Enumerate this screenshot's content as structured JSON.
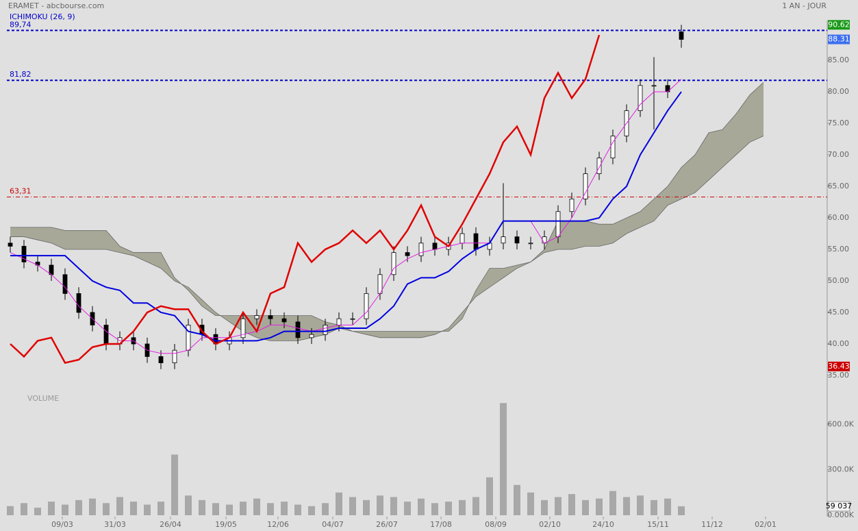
{
  "chart_data": [
    {
      "type": "candlestick",
      "title": "ERAMET - abcbourse.com",
      "indicator": "ICHIMOKU (26, 9)",
      "period": "1 AN - JOUR",
      "xlim": [
        -0.25,
        59.65
      ],
      "ylim": [
        34.5,
        91.3
      ],
      "xticks": [
        {
          "value": 3.8,
          "label": "09/03"
        },
        {
          "value": 7.65,
          "label": "31/03"
        },
        {
          "value": 11.7,
          "label": "26/04"
        },
        {
          "value": 15.75,
          "label": "19/05"
        },
        {
          "value": 19.55,
          "label": "12/06"
        },
        {
          "value": 23.55,
          "label": "04/07"
        },
        {
          "value": 27.5,
          "label": "26/07"
        },
        {
          "value": 31.45,
          "label": "17/08"
        },
        {
          "value": 35.45,
          "label": "08/09"
        },
        {
          "value": 39.4,
          "label": "02/10"
        },
        {
          "value": 43.3,
          "label": "24/10"
        },
        {
          "value": 47.3,
          "label": "15/11"
        },
        {
          "value": 51.25,
          "label": "11/12"
        },
        {
          "value": 55.15,
          "label": "02/01"
        }
      ],
      "yticks": [
        {
          "value": 35,
          "label": "35.00"
        },
        {
          "value": 40,
          "label": "40.00"
        },
        {
          "value": 45,
          "label": "45.00"
        },
        {
          "value": 50,
          "label": "50.00"
        },
        {
          "value": 55,
          "label": "55.00"
        },
        {
          "value": 60,
          "label": "60.00"
        },
        {
          "value": 65,
          "label": "65.00"
        },
        {
          "value": 70,
          "label": "70.00"
        },
        {
          "value": 75,
          "label": "75.00"
        },
        {
          "value": 80,
          "label": "80.00"
        },
        {
          "value": 85,
          "label": "85.00"
        }
      ],
      "open": [
        56,
        55.5,
        53,
        52.5,
        51,
        48,
        45,
        43,
        40,
        41,
        40,
        38,
        37,
        39,
        43,
        41.5,
        40,
        41,
        44,
        44.5,
        44,
        43.5,
        41,
        41.5,
        43,
        44,
        44,
        48,
        51,
        54.5,
        54,
        56,
        55,
        56,
        57.5,
        55,
        56,
        57,
        56,
        56,
        57,
        61,
        63,
        67,
        69.5,
        73,
        77,
        81,
        81,
        89.5
      ],
      "high": [
        57,
        56.5,
        54,
        53.5,
        52,
        49,
        46,
        44,
        42,
        42,
        41,
        39,
        40,
        44,
        44,
        42.5,
        42,
        45,
        45.5,
        45.5,
        45,
        44.5,
        42.5,
        44,
        45,
        45,
        49,
        52,
        55.5,
        55.5,
        57,
        57,
        57,
        58.5,
        58.5,
        57,
        65.5,
        58,
        57,
        58,
        62,
        64,
        68,
        70.5,
        74,
        78,
        82,
        85.5,
        82,
        90.62
      ],
      "low": [
        54.5,
        52,
        51.5,
        50,
        47,
        44,
        42,
        39,
        39,
        39,
        37,
        36,
        36,
        38,
        40.5,
        39,
        39,
        40,
        43,
        43,
        42.5,
        40,
        40,
        40.5,
        42,
        43,
        43,
        47,
        50,
        53,
        53,
        54,
        54,
        55,
        54,
        54,
        55,
        55,
        55,
        55,
        56,
        60,
        62,
        66,
        68.5,
        72,
        76,
        74,
        79,
        87
      ],
      "close": [
        55.5,
        53,
        52.5,
        51,
        48,
        45,
        43,
        40,
        41,
        40,
        38,
        37,
        39,
        43,
        41.5,
        40,
        41,
        44,
        44.5,
        44,
        43.5,
        41,
        41.5,
        43,
        44,
        44,
        48,
        51,
        54.5,
        54,
        56,
        55,
        56,
        57.5,
        55,
        56,
        57,
        56,
        56,
        57,
        61,
        63,
        67,
        69.5,
        73,
        77,
        81,
        81,
        80,
        88.31
      ],
      "lines": [
        {
          "color": "#e020e0",
          "width": 1,
          "values": [
            54.5,
            53.5,
            52.5,
            51,
            49,
            46,
            44,
            42,
            40.5,
            40.5,
            39,
            38.5,
            38.5,
            39,
            41,
            41,
            41,
            41.5,
            42,
            43,
            43,
            42.5,
            42,
            42.5,
            43,
            43,
            45,
            48,
            52,
            53.5,
            54.5,
            55,
            55.5,
            56,
            56,
            56,
            59.5,
            59.5,
            59.5,
            56,
            57,
            60,
            64,
            68,
            72,
            75,
            78,
            80,
            80,
            82
          ]
        },
        {
          "color": "#0000e0",
          "width": 2,
          "values": [
            54,
            54,
            54,
            54,
            54,
            52,
            50,
            49,
            48.5,
            46.5,
            46.5,
            45,
            44.5,
            42,
            41.5,
            40.5,
            40.5,
            40.5,
            40.5,
            41,
            42,
            42,
            42,
            42,
            42.5,
            42.5,
            42.5,
            44,
            46,
            49.5,
            50.5,
            50.5,
            51.5,
            53.5,
            55,
            56,
            59.5,
            59.5,
            59.5,
            59.5,
            59.5,
            59.5,
            59.5,
            60,
            63,
            65,
            70,
            73.5,
            77,
            80
          ]
        },
        {
          "color": "#e00000",
          "width": 2.5,
          "values": [
            40,
            38,
            40.5,
            41,
            37,
            37.5,
            39.5,
            40,
            40,
            42,
            45,
            46,
            45.5,
            45.5,
            42,
            40,
            41,
            45,
            42,
            48,
            49,
            56,
            53,
            55,
            56,
            58,
            56,
            58,
            55,
            58,
            62,
            57,
            55.5,
            59,
            63,
            67,
            72,
            74.5,
            70,
            79,
            83,
            79,
            82,
            89
          ]
        }
      ],
      "cloud": {
        "color": "#a8a898",
        "spans": [
          {
            "values": [
              58.5,
              58.5,
              58.5,
              58.5,
              58,
              58,
              58,
              58,
              55.5,
              54.5,
              54.5,
              54.5,
              50.5,
              48.5,
              46,
              44.5,
              44.5,
              44.5,
              44.5,
              44.5,
              44.5,
              44.5,
              44.5,
              43.5,
              43,
              42,
              42,
              42,
              42,
              42,
              42,
              42,
              42,
              44,
              48.5,
              52,
              52,
              52.5,
              53,
              55,
              59.5,
              59.5,
              59.5,
              59,
              59,
              60,
              61,
              63,
              65,
              68,
              70,
              73.5,
              74,
              76.5,
              79.5,
              81.5
            ]
          },
          {
            "values": [
              57,
              57,
              56.5,
              56,
              55,
              55,
              55,
              55,
              54.5,
              54,
              53,
              52,
              50,
              49,
              47,
              45,
              43.5,
              42,
              41,
              40.5,
              40.5,
              40.5,
              41,
              41.5,
              42.5,
              42,
              41.5,
              41,
              41,
              41,
              41,
              41.5,
              42.5,
              45,
              47.5,
              49,
              50.5,
              52,
              53,
              54.5,
              55,
              55,
              55.5,
              55.5,
              56,
              57.5,
              58.5,
              59.5,
              62,
              63,
              64,
              66,
              68,
              70,
              72,
              73
            ]
          }
        ]
      },
      "levels": [
        {
          "value": 89.74,
          "label": "89,74",
          "color": "#0000cc",
          "dash": "4 3"
        },
        {
          "value": 81.82,
          "label": "81,82",
          "color": "#0000cc",
          "dash": "4 3"
        },
        {
          "value": 63.31,
          "label": "63,31",
          "color": "#cc0000",
          "dash": "6 3 1 3"
        }
      ],
      "tags": [
        {
          "value": 90.62,
          "label": "90.62",
          "color": "#1a9a1a"
        },
        {
          "value": 88.31,
          "label": "88.31",
          "color": "#3b6ff0"
        },
        {
          "value": 36.43,
          "label": "36.43",
          "color": "#cc0000"
        }
      ]
    },
    {
      "type": "bar",
      "title": "VOLUME",
      "color": "#a8a8a8",
      "xlim": [
        -0.25,
        59.65
      ],
      "ylim": [
        0,
        800000
      ],
      "yticks": [
        {
          "value": 0,
          "label": "0.000K"
        },
        {
          "value": 300000,
          "label": "300.0K"
        },
        {
          "value": 600000,
          "label": "600.0K"
        }
      ],
      "values": [
        60000,
        80000,
        50000,
        90000,
        70000,
        100000,
        110000,
        80000,
        120000,
        90000,
        70000,
        90000,
        400000,
        130000,
        100000,
        80000,
        70000,
        90000,
        110000,
        80000,
        90000,
        70000,
        60000,
        80000,
        150000,
        120000,
        100000,
        130000,
        120000,
        90000,
        110000,
        80000,
        90000,
        100000,
        120000,
        250000,
        740000,
        200000,
        150000,
        100000,
        120000,
        140000,
        100000,
        110000,
        160000,
        120000,
        130000,
        100000,
        110000,
        59037
      ],
      "last_label": "59 037"
    }
  ]
}
